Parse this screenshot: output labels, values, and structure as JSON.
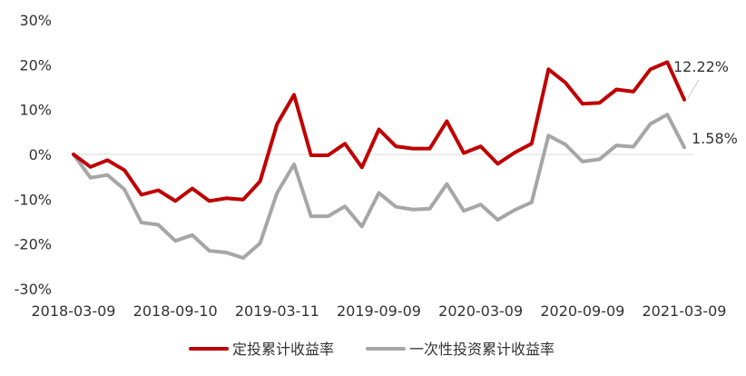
{
  "chart_data": {
    "type": "line",
    "ylim": [
      -30,
      30
    ],
    "ytick_step": 10,
    "ytick_labels": [
      "30%",
      "20%",
      "10%",
      "0%",
      "-10%",
      "-20%",
      "-30%"
    ],
    "x_tick_labels": [
      "2018-03-09",
      "2018-09-10",
      "2019-03-11",
      "2019-09-09",
      "2020-03-09",
      "2020-09-09",
      "2021-03-09"
    ],
    "x_tick_indices": [
      0,
      6,
      12,
      18,
      24,
      30,
      36
    ],
    "grid": false,
    "zero_line": true,
    "legend_position": "bottom",
    "series": [
      {
        "name": "定投累计收益率",
        "color": "#C00000",
        "values": [
          0,
          -2.8,
          -1.3,
          -3.5,
          -9.0,
          -8.0,
          -10.4,
          -7.6,
          -10.4,
          -9.8,
          -10.1,
          -6.0,
          6.8,
          13.3,
          -0.2,
          -0.2,
          2.4,
          -2.9,
          5.6,
          1.8,
          1.3,
          1.3,
          7.4,
          0.3,
          1.8,
          -2.1,
          0.4,
          2.4,
          19.0,
          16.0,
          11.3,
          11.5,
          14.5,
          14.0,
          19.0,
          20.6,
          12.22
        ],
        "end_label": "12.22%"
      },
      {
        "name": "一次性投资累计收益率",
        "color": "#A6A6A6",
        "values": [
          0,
          -5.2,
          -4.6,
          -7.8,
          -15.2,
          -15.7,
          -19.3,
          -18.0,
          -21.5,
          -21.9,
          -23.1,
          -19.8,
          -8.6,
          -2.2,
          -13.8,
          -13.8,
          -11.6,
          -16.1,
          -8.6,
          -11.7,
          -12.3,
          -12.1,
          -6.6,
          -12.6,
          -11.2,
          -14.6,
          -12.4,
          -10.7,
          4.2,
          2.2,
          -1.6,
          -1.1,
          2.0,
          1.7,
          6.8,
          8.9,
          1.58
        ],
        "end_label": "1.58%"
      }
    ]
  }
}
